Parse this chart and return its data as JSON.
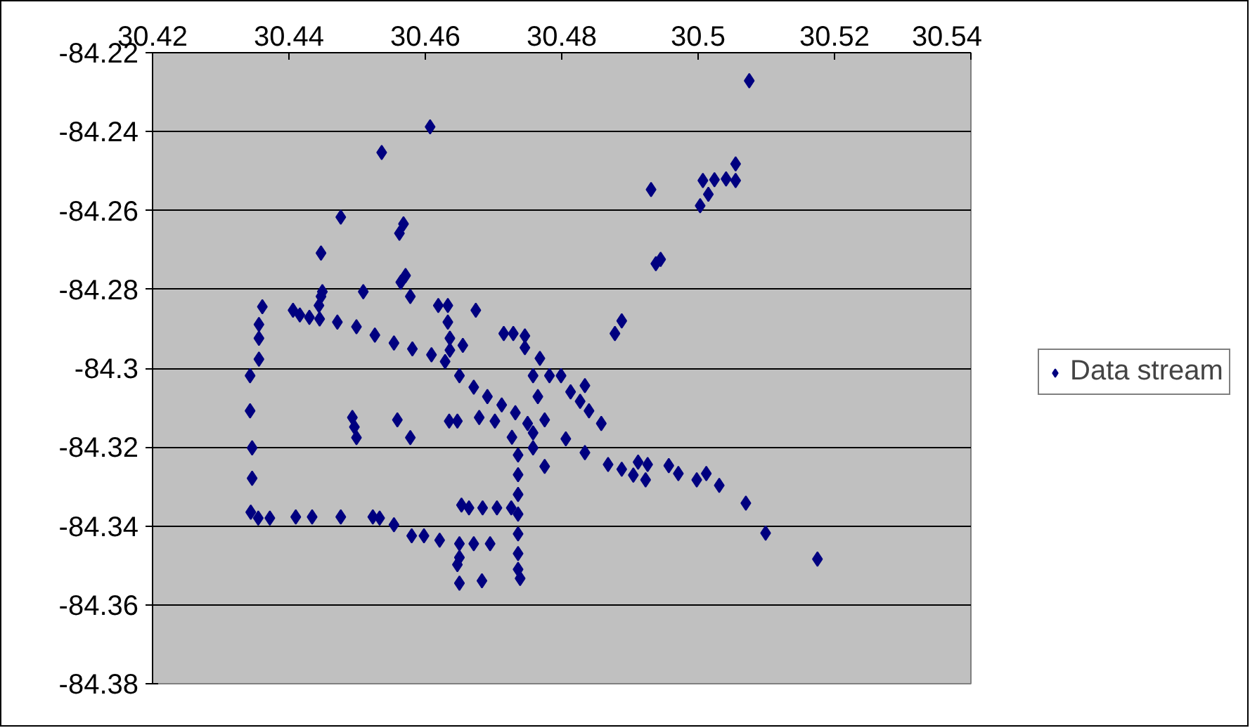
{
  "chart_data": {
    "type": "scatter",
    "xlim": [
      30.42,
      30.54
    ],
    "ylim": [
      -84.38,
      -84.22
    ],
    "xticks": [
      30.42,
      30.44,
      30.46,
      30.48,
      30.5,
      30.52,
      30.54
    ],
    "yticks": [
      -84.22,
      -84.24,
      -84.26,
      -84.28,
      -84.3,
      -84.32,
      -84.34,
      -84.36,
      -84.38
    ],
    "grid": "y",
    "legend": "right",
    "marker": "diamond",
    "series": [
      {
        "name": "Data stream",
        "color": "#000080",
        "x": [
          30.5075,
          30.4607,
          30.4536,
          30.4931,
          30.5055,
          30.5007,
          30.5024,
          30.5041,
          30.5055,
          30.5015,
          30.5003,
          30.4476,
          30.4568,
          30.4562,
          30.4447,
          30.4945,
          30.4938,
          30.4571,
          30.4564,
          30.4578,
          30.4449,
          30.4509,
          30.4447,
          30.4444,
          30.4406,
          30.4416,
          30.443,
          30.4445,
          30.4471,
          30.4499,
          30.4526,
          30.4554,
          30.4581,
          30.4609,
          30.4629,
          30.465,
          30.4671,
          30.4691,
          30.4712,
          30.4732,
          30.4361,
          30.4356,
          30.4356,
          30.4356,
          30.4343,
          30.4343,
          30.4346,
          30.4346,
          30.4344,
          30.4355,
          30.4372,
          30.441,
          30.4434,
          30.4476,
          30.4523,
          30.4533,
          30.4554,
          30.458,
          30.4598,
          30.4621,
          30.4653,
          30.4664,
          30.4684,
          30.4705,
          30.4726,
          30.465,
          30.4671,
          30.465,
          30.4647,
          30.4695,
          30.465,
          30.4683,
          30.4739,
          30.4736,
          30.4736,
          30.4736,
          30.4736,
          30.4736,
          30.4736,
          30.4736,
          30.4493,
          30.4496,
          30.4499,
          30.4559,
          30.4578,
          30.4635,
          30.4647,
          30.4679,
          30.4702,
          30.4727,
          30.4619,
          30.4633,
          30.4633,
          30.4636,
          30.4636,
          30.4674,
          30.4655,
          30.4715,
          30.4729,
          30.4746,
          30.4746,
          30.4768,
          30.4758,
          30.4782,
          30.4799,
          30.4888,
          30.4878,
          30.4765,
          30.4775,
          30.4758,
          30.4758,
          30.4775,
          30.475,
          30.4806,
          30.4834,
          30.4868,
          30.4888,
          30.4912,
          30.4926,
          30.4905,
          30.4923,
          30.4957,
          30.4971,
          30.4998,
          30.5012,
          30.5031,
          30.507,
          30.5099,
          30.5175,
          30.4813,
          30.4834,
          30.4827,
          30.484,
          30.4858
        ],
        "values": [
          -84.2271,
          -84.2388,
          -84.2453,
          -84.2547,
          -84.2482,
          -84.2524,
          -84.2522,
          -84.252,
          -84.2524,
          -84.2559,
          -84.2588,
          -84.2617,
          -84.2634,
          -84.2658,
          -84.2708,
          -84.2724,
          -84.2735,
          -84.2765,
          -84.2782,
          -84.2818,
          -84.2806,
          -84.2806,
          -84.2818,
          -84.2841,
          -84.2853,
          -84.2865,
          -84.2871,
          -84.2875,
          -84.2883,
          -84.2895,
          -84.2916,
          -84.2936,
          -84.2951,
          -84.2966,
          -84.2983,
          -84.3019,
          -84.3048,
          -84.3072,
          -84.3093,
          -84.3113,
          -84.2844,
          -84.2889,
          -84.2924,
          -84.2977,
          -84.3019,
          -84.3108,
          -84.3202,
          -84.3279,
          -84.3365,
          -84.338,
          -84.338,
          -84.3377,
          -84.3377,
          -84.3377,
          -84.3377,
          -84.338,
          -84.3397,
          -84.3425,
          -84.3425,
          -84.3436,
          -84.3347,
          -84.3354,
          -84.3354,
          -84.3354,
          -84.3354,
          -84.3445,
          -84.3445,
          -84.348,
          -84.3498,
          -84.3445,
          -84.3545,
          -84.3539,
          -84.3533,
          -84.322,
          -84.327,
          -84.332,
          -84.337,
          -84.342,
          -84.347,
          -84.351,
          -84.3125,
          -84.3149,
          -84.3176,
          -84.3131,
          -84.3176,
          -84.3134,
          -84.3134,
          -84.3125,
          -84.3134,
          -84.3175,
          -84.2841,
          -84.2841,
          -84.2883,
          -84.2924,
          -84.2954,
          -84.2853,
          -84.2942,
          -84.2912,
          -84.2912,
          -84.2918,
          -84.2948,
          -84.2975,
          -84.3019,
          -84.3019,
          -84.3019,
          -84.288,
          -84.2912,
          -84.3072,
          -84.3131,
          -84.3164,
          -84.3202,
          -84.3249,
          -84.314,
          -84.3179,
          -84.3214,
          -84.3244,
          -84.3256,
          -84.3238,
          -84.3244,
          -84.3271,
          -84.3283,
          -84.3247,
          -84.3267,
          -84.3283,
          -84.3267,
          -84.3297,
          -84.3342,
          -84.3418,
          -84.3484,
          -84.306,
          -84.3044,
          -84.3084,
          -84.3108,
          -84.314
        ]
      }
    ]
  }
}
